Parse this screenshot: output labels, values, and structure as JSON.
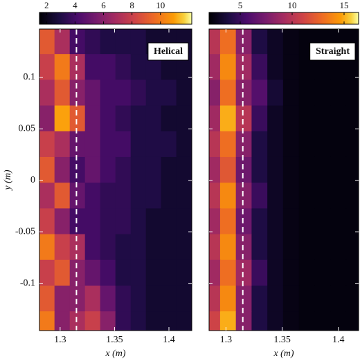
{
  "chart_data": [
    {
      "type": "heatmap",
      "label": "Helical",
      "colormap": "inferno",
      "clim": [
        1.5,
        12.2
      ],
      "cticks": [
        2,
        4,
        6,
        8,
        10
      ],
      "xlim": [
        1.281,
        1.421
      ],
      "ylim": [
        -0.146,
        0.147
      ],
      "xticks": [
        1.3,
        1.35,
        1.4
      ],
      "yticks": [
        0.1,
        0.05,
        0,
        -0.05,
        -0.1
      ],
      "xlabel": "x (m)",
      "ylabel": "y (m)",
      "vline": 1.315,
      "x": [
        1.288,
        1.302,
        1.316,
        1.33,
        1.344,
        1.358,
        1.372,
        1.386,
        1.4,
        1.414
      ],
      "y": [
        0.135,
        0.11,
        0.085,
        0.06,
        0.035,
        0.01,
        -0.015,
        -0.04,
        -0.065,
        -0.09,
        -0.115,
        -0.14
      ],
      "z": [
        [
          9,
          7,
          4,
          3.5,
          3,
          3,
          3,
          2.5,
          2.5,
          2.5
        ],
        [
          8,
          10,
          7,
          4,
          4,
          3.5,
          3,
          3,
          2.5,
          2.5
        ],
        [
          7,
          9,
          6,
          5,
          4,
          4,
          3.5,
          3,
          3,
          2.5
        ],
        [
          6,
          11,
          9,
          5,
          4,
          3.5,
          3,
          3,
          2.5,
          2.5
        ],
        [
          8,
          7,
          5,
          5,
          4,
          4,
          3,
          3,
          3,
          2.5
        ],
        [
          9,
          6,
          4,
          5,
          4,
          3.5,
          3,
          3,
          2.5,
          2.5
        ],
        [
          7,
          9,
          5,
          4,
          3.5,
          3.5,
          3,
          3,
          2.5,
          2.5
        ],
        [
          8,
          6,
          4,
          4,
          3.5,
          3.5,
          3,
          2.5,
          2.5,
          2.5
        ],
        [
          10,
          8,
          7,
          4,
          3.5,
          3,
          3,
          2.5,
          2.5,
          2.5
        ],
        [
          8,
          9,
          6,
          5,
          4,
          3,
          3,
          2.5,
          2.5,
          2.5
        ],
        [
          9,
          6,
          6,
          7,
          5,
          3.5,
          3,
          2.5,
          2.5,
          2.5
        ],
        [
          10,
          6,
          7,
          8,
          6,
          3.5,
          3,
          2.5,
          2.5,
          2.5
        ]
      ]
    },
    {
      "type": "heatmap",
      "label": "Straight",
      "colormap": "inferno",
      "clim": [
        2,
        16.4
      ],
      "cticks": [
        5,
        10,
        15
      ],
      "xlim": [
        1.285,
        1.418
      ],
      "ylim": [
        -0.146,
        0.147
      ],
      "xticks": [
        1.3,
        1.35,
        1.4
      ],
      "xlabel": "x (m)",
      "vline": 1.315,
      "x": [
        1.288,
        1.302,
        1.316,
        1.33,
        1.344,
        1.358,
        1.372,
        1.386,
        1.4,
        1.414
      ],
      "y": [
        0.135,
        0.11,
        0.085,
        0.06,
        0.035,
        0.01,
        -0.015,
        -0.04,
        -0.065,
        -0.09,
        -0.115,
        -0.14
      ],
      "z": [
        [
          10,
          13,
          8,
          4,
          3,
          2.5,
          2.3,
          2.3,
          2.3,
          2.3
        ],
        [
          9,
          14,
          9,
          5,
          3,
          2.5,
          2.3,
          2.3,
          2.3,
          2.3
        ],
        [
          8,
          13,
          8,
          6,
          3.5,
          2.5,
          2.3,
          2.3,
          2.3,
          2.3
        ],
        [
          9,
          15,
          10,
          5,
          3,
          2.5,
          2.3,
          2.3,
          2.3,
          2.3
        ],
        [
          10,
          13,
          8,
          4,
          3,
          2.5,
          2.3,
          2.3,
          2.3,
          2.3
        ],
        [
          9,
          12,
          7,
          4,
          3,
          2.5,
          2.3,
          2.3,
          2.3,
          2.3
        ],
        [
          10,
          14,
          8,
          5,
          3,
          2.5,
          2.3,
          2.3,
          2.3,
          2.3
        ],
        [
          9,
          13,
          7,
          4,
          3,
          2.5,
          2.3,
          2.3,
          2.3,
          2.3
        ],
        [
          10,
          14,
          8,
          4,
          3,
          2.5,
          2.3,
          2.3,
          2.3,
          2.3
        ],
        [
          9,
          13,
          9,
          5,
          3,
          2.5,
          2.3,
          2.3,
          2.3,
          2.3
        ],
        [
          10,
          14,
          8,
          4,
          3,
          2.5,
          2.3,
          2.3,
          2.3,
          2.3
        ],
        [
          11,
          15,
          8,
          4,
          3,
          2.5,
          2.3,
          2.3,
          2.3,
          2.3
        ]
      ]
    }
  ]
}
